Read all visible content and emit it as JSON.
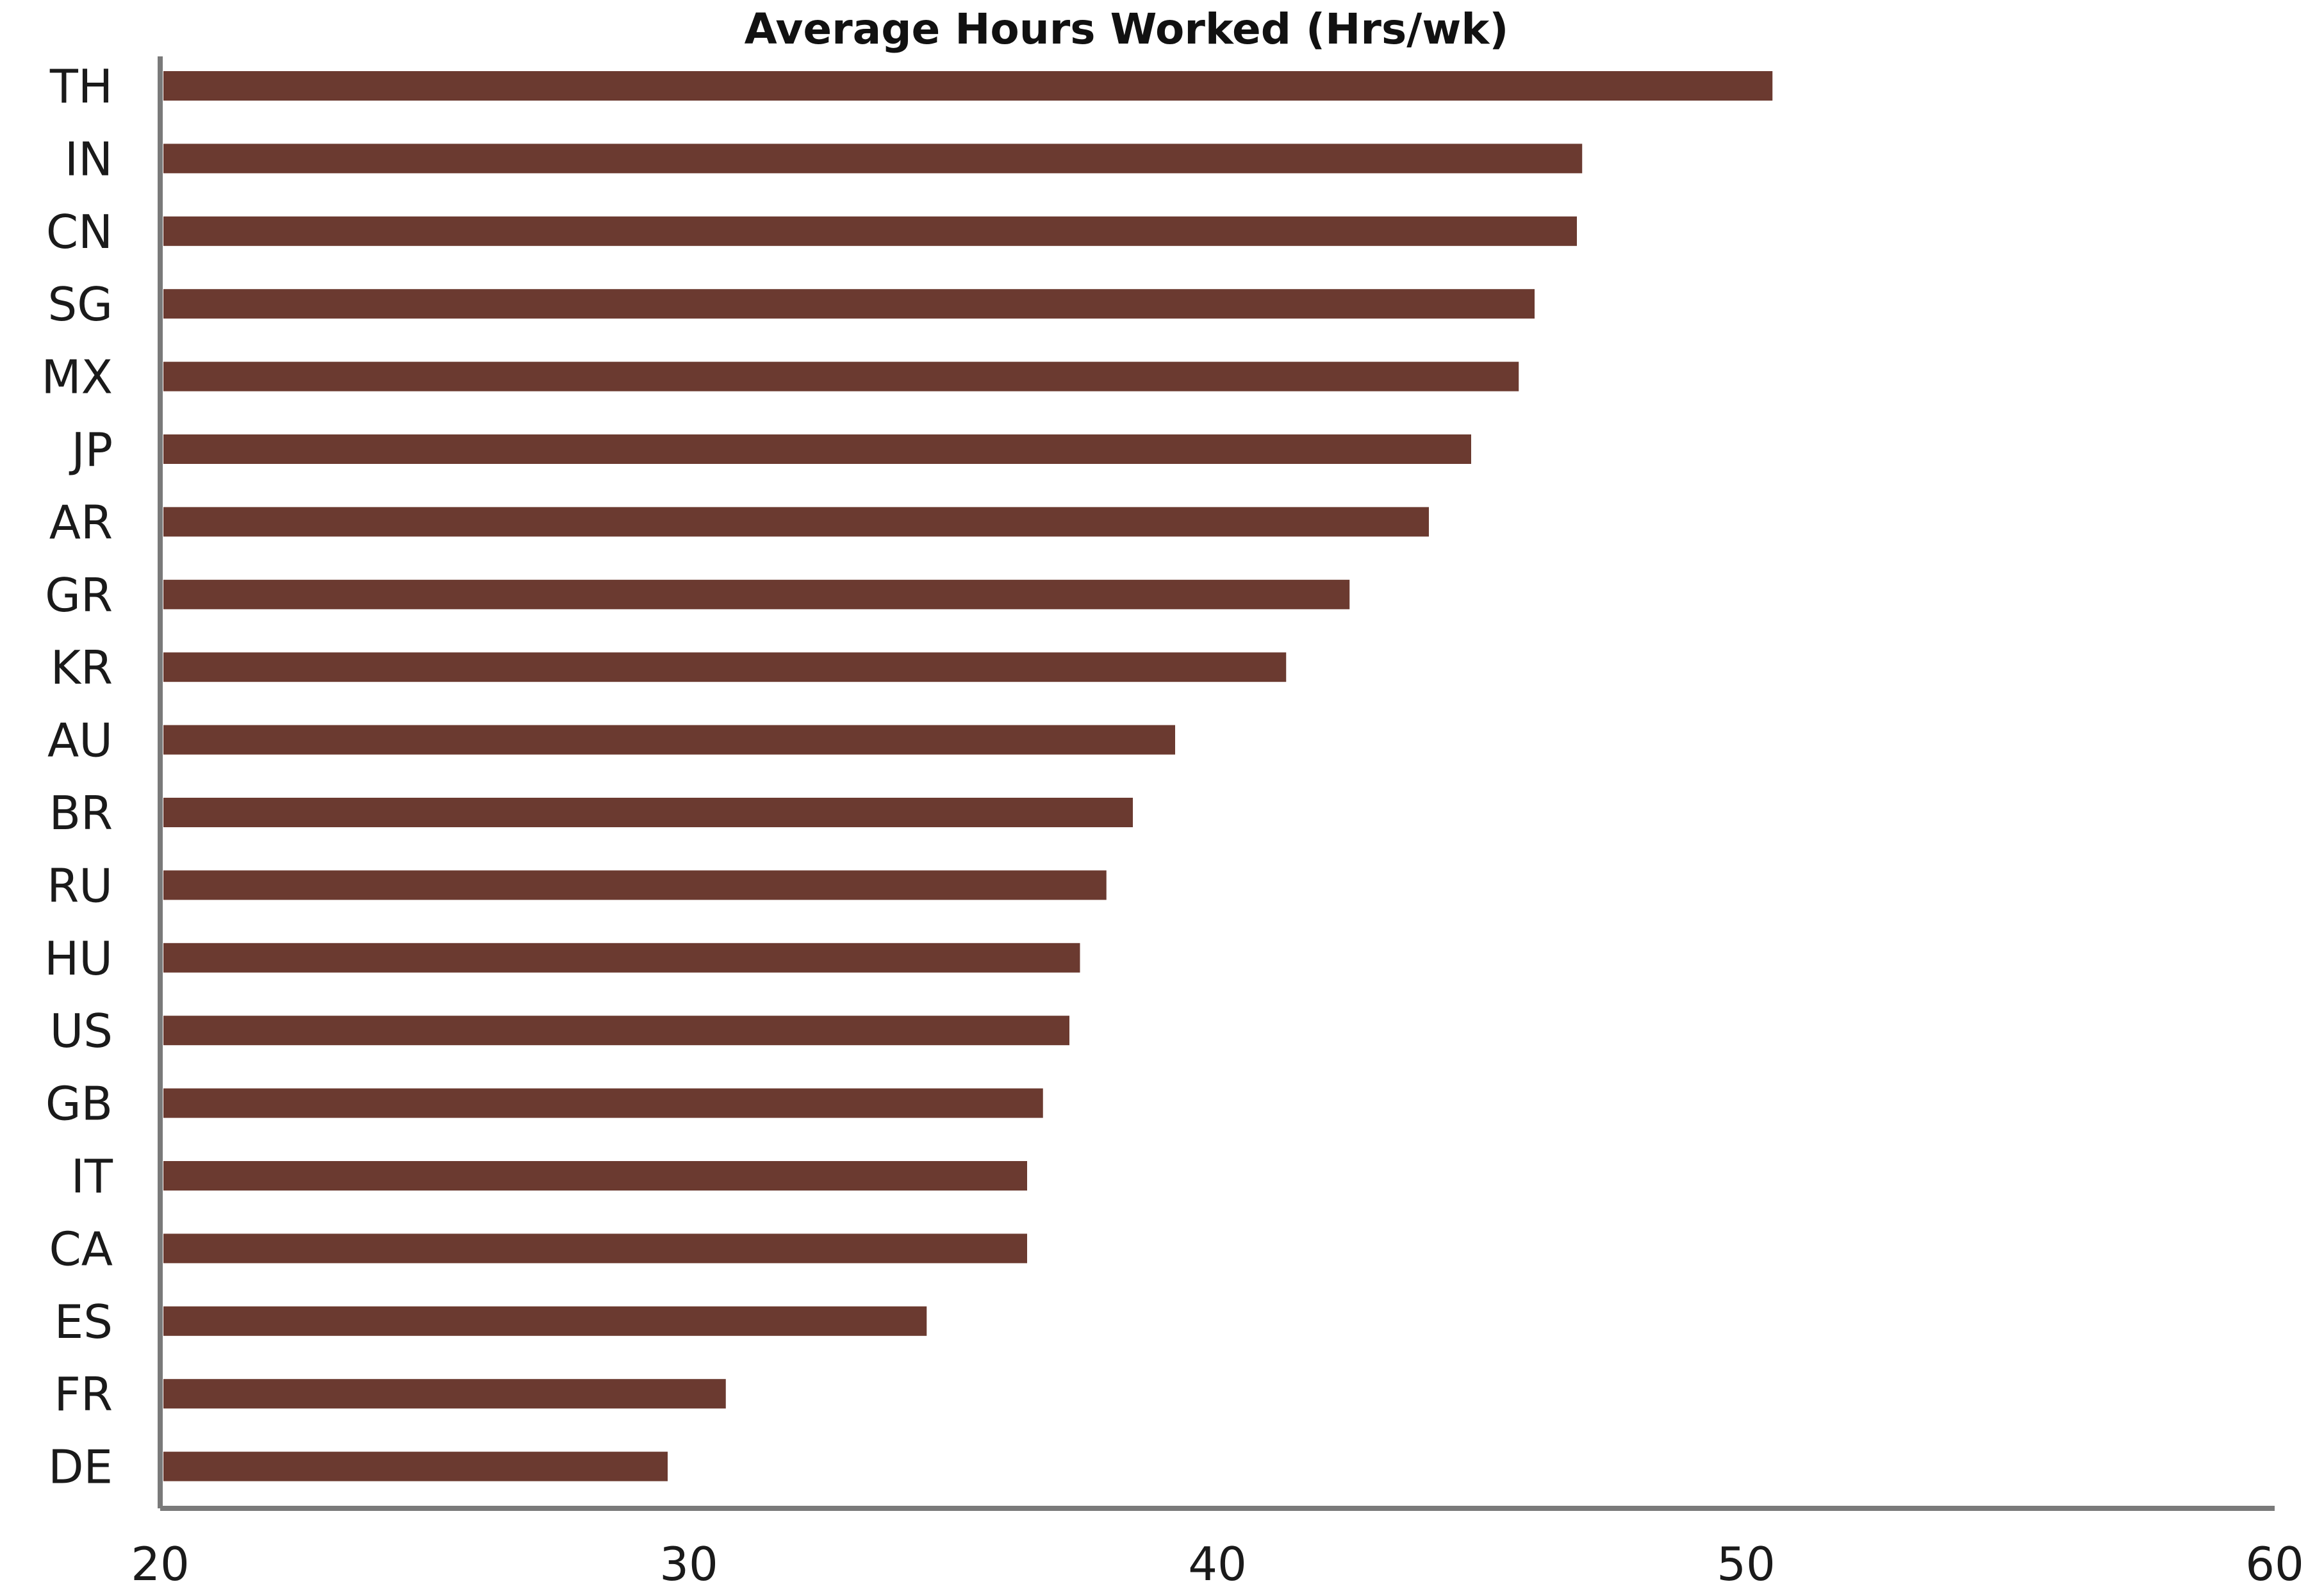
{
  "chart_data": {
    "type": "bar",
    "orientation": "horizontal",
    "title": "Average Hours Worked (Hrs/wk)",
    "xlabel": "",
    "ylabel": "",
    "categories": [
      "TH",
      "IN",
      "CN",
      "SG",
      "MX",
      "JP",
      "AR",
      "GR",
      "KR",
      "AU",
      "BR",
      "RU",
      "HU",
      "US",
      "GB",
      "IT",
      "CA",
      "ES",
      "FR",
      "DE"
    ],
    "values": [
      50.5,
      46.9,
      46.8,
      46.0,
      45.7,
      44.8,
      44.0,
      42.5,
      41.3,
      39.2,
      38.4,
      37.9,
      37.4,
      37.2,
      36.7,
      36.4,
      36.4,
      34.5,
      30.7,
      29.6
    ],
    "xlim": [
      20,
      60
    ],
    "xticks": [
      20,
      30,
      40,
      50,
      60
    ],
    "grid": false,
    "legend": "none",
    "bar_color": "#6b3a30",
    "axis_color": "#7a7a7a"
  }
}
